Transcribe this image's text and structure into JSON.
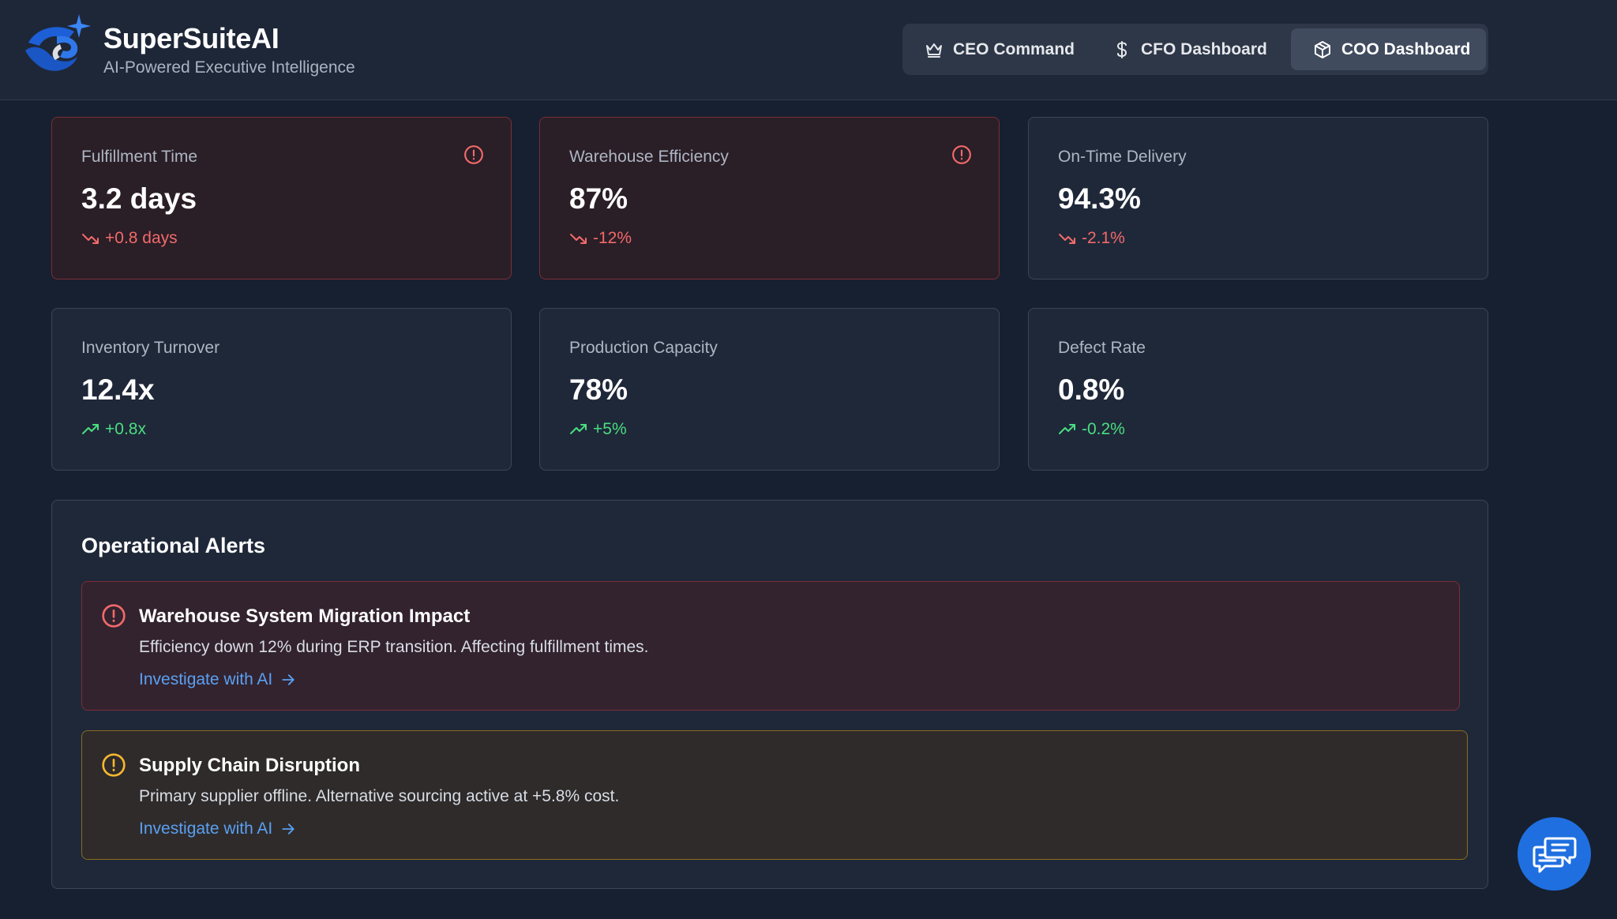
{
  "header": {
    "brand_title": "SuperSuiteAI",
    "brand_subtitle": "AI-Powered Executive Intelligence",
    "nav": [
      {
        "label": "CEO Command",
        "icon": "crown-icon",
        "active": false
      },
      {
        "label": "CFO Dashboard",
        "icon": "dollar-icon",
        "active": false
      },
      {
        "label": "COO Dashboard",
        "icon": "package-icon",
        "active": true
      }
    ]
  },
  "metrics": [
    {
      "label": "Fulfillment Time",
      "value": "3.2 days",
      "change": "+0.8 days",
      "trend": "down",
      "status": "alert"
    },
    {
      "label": "Warehouse Efficiency",
      "value": "87%",
      "change": "-12%",
      "trend": "down",
      "status": "alert"
    },
    {
      "label": "On-Time Delivery",
      "value": "94.3%",
      "change": "-2.1%",
      "trend": "down",
      "status": "normal"
    },
    {
      "label": "Inventory Turnover",
      "value": "12.4x",
      "change": "+0.8x",
      "trend": "up",
      "status": "normal"
    },
    {
      "label": "Production Capacity",
      "value": "78%",
      "change": "+5%",
      "trend": "up",
      "status": "normal"
    },
    {
      "label": "Defect Rate",
      "value": "0.8%",
      "change": "-0.2%",
      "trend": "up",
      "status": "normal"
    }
  ],
  "alerts_panel": {
    "title": "Operational Alerts",
    "alerts": [
      {
        "severity": "critical",
        "title": "Warehouse System Migration Impact",
        "description": "Efficiency down 12% during ERP transition. Affecting fulfillment times.",
        "link_label": "Investigate with AI"
      },
      {
        "severity": "warning",
        "title": "Supply Chain Disruption",
        "description": "Primary supplier offline. Alternative sourcing active at +5.8% cost.",
        "link_label": "Investigate with AI"
      }
    ]
  },
  "colors": {
    "background": "#172030",
    "negative": "#f26a6a",
    "positive": "#4ade80",
    "link": "#5aa0f2",
    "warning": "#f5b82e",
    "accent": "#1f6fe0"
  },
  "chat_button": {
    "icon": "chat-bubbles-icon"
  }
}
